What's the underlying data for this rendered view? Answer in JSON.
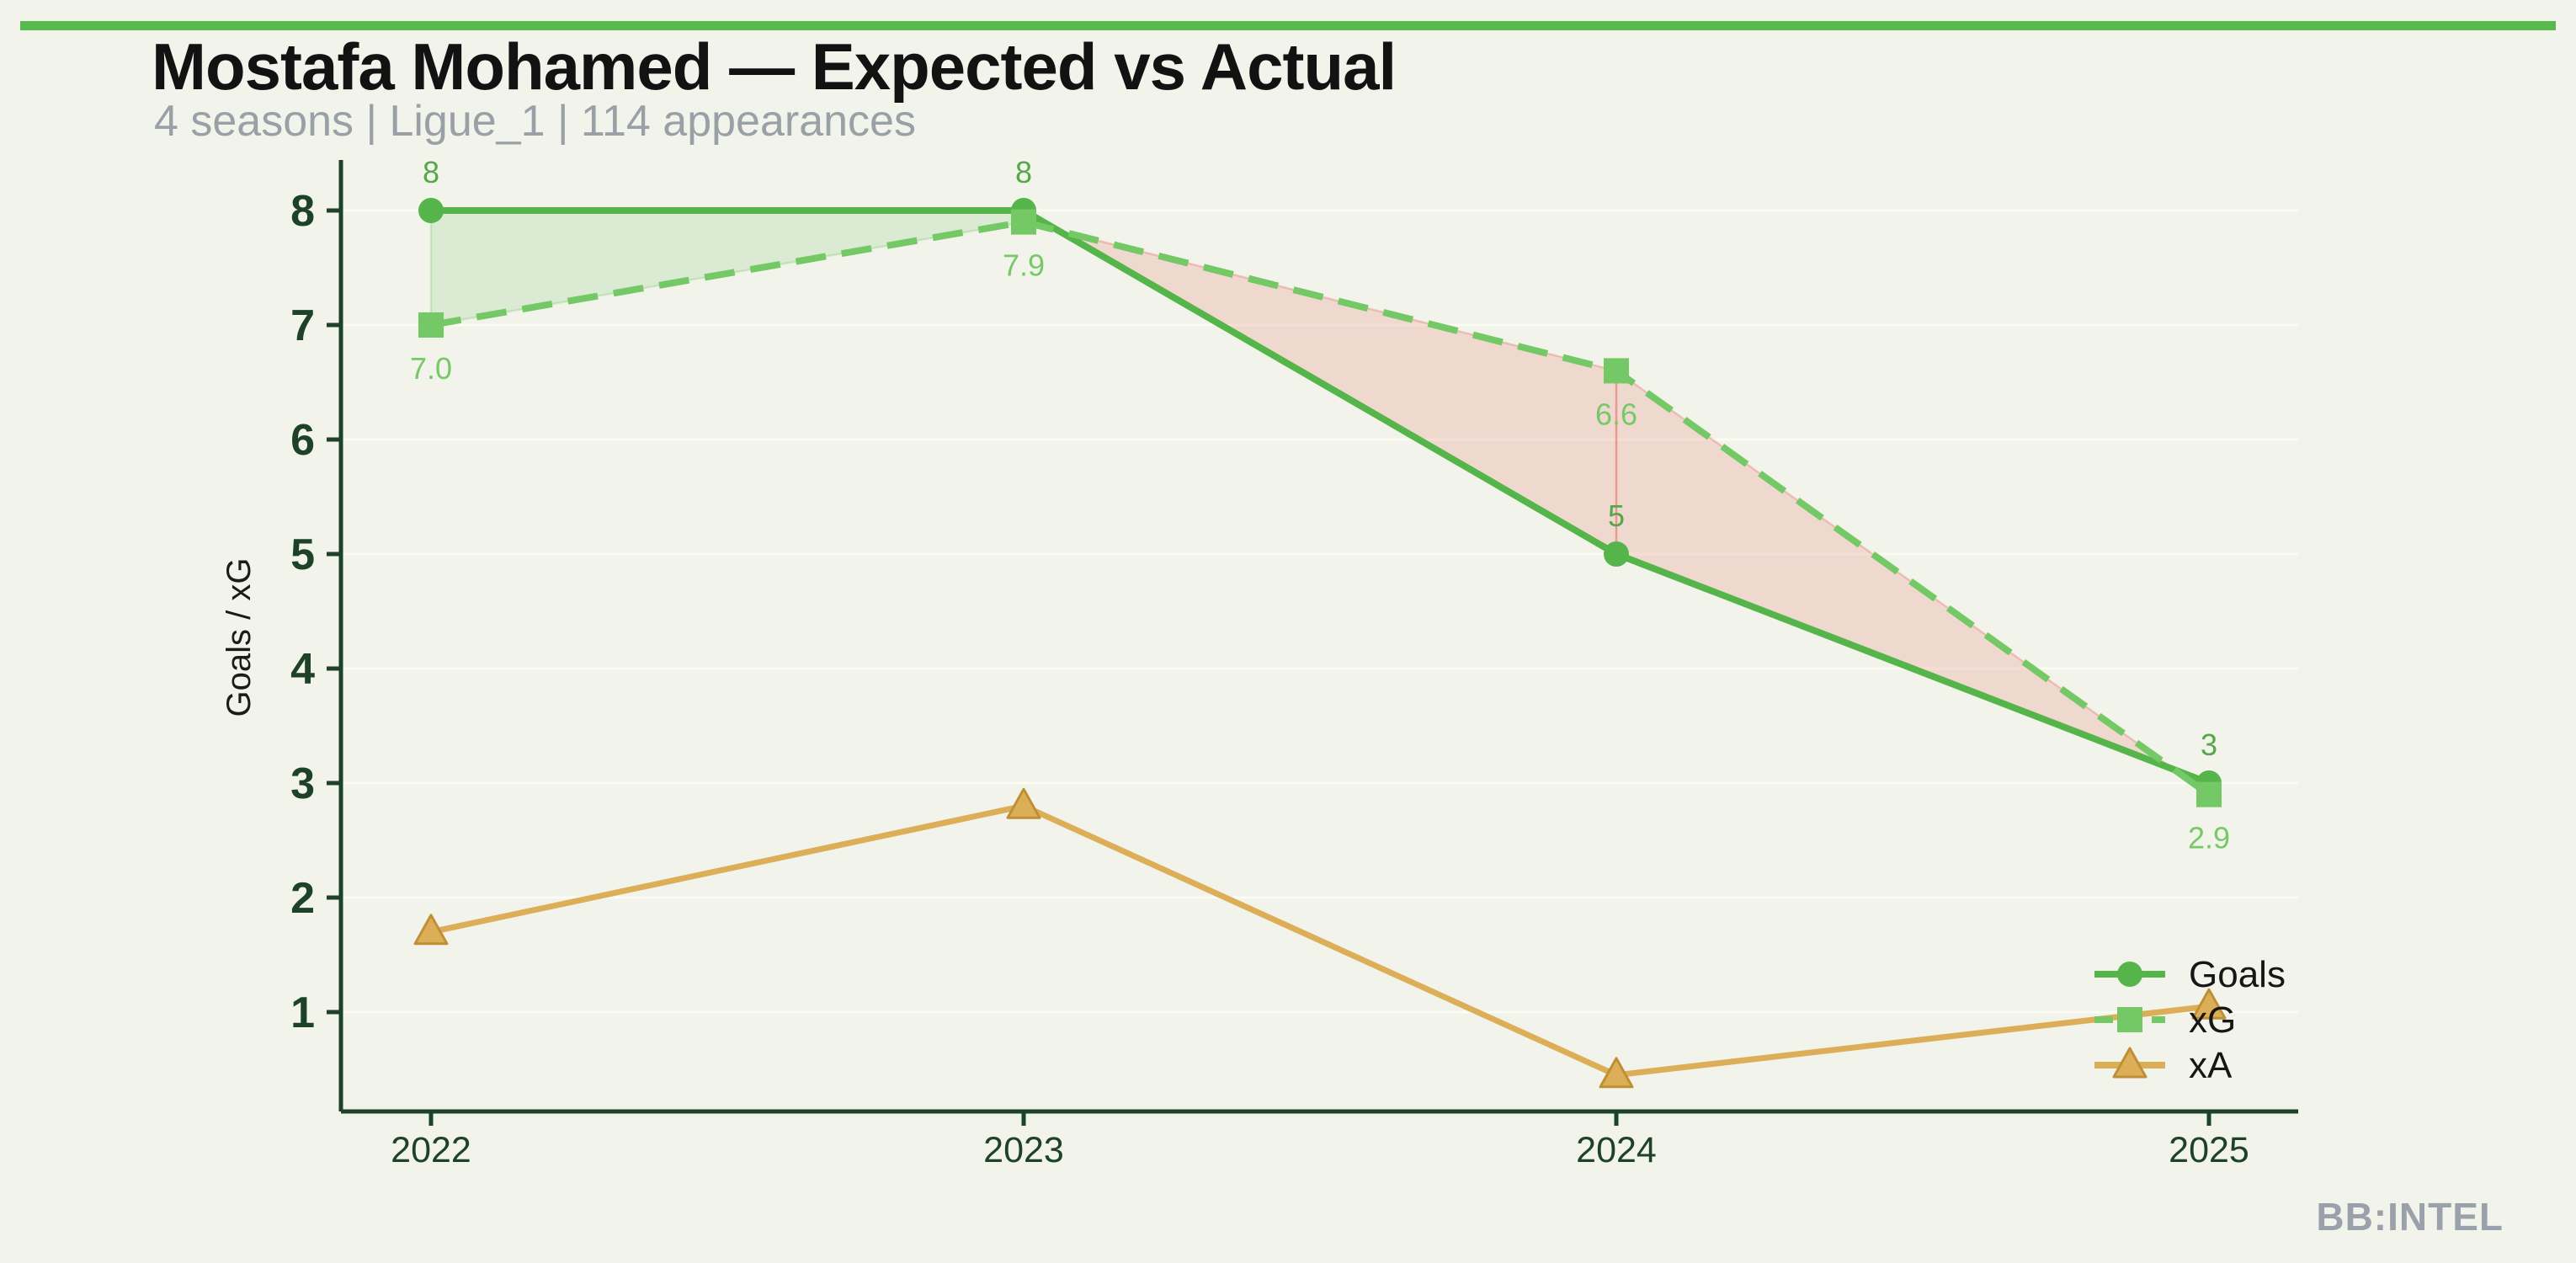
{
  "page": {
    "title": "Mostafa Mohamed — Expected vs Actual",
    "subtitle": "4 seasons | Ligue_1 | 114 appearances",
    "watermark": "BB:INTEL",
    "accent_color": "#58ba4c",
    "background_color": "#f2f4eb"
  },
  "chart_data": {
    "type": "line",
    "title": "Mostafa Mohamed — Expected vs Actual",
    "subtitle": "4 seasons | Ligue_1 | 114 appearances",
    "x": [
      "2022",
      "2023",
      "2024",
      "2025"
    ],
    "xlabel": "",
    "ylabel": "Goals / xG",
    "ylim": [
      0,
      8.6
    ],
    "yticks": [
      1,
      2,
      3,
      4,
      5,
      6,
      7,
      8
    ],
    "grid": true,
    "legend_position": "lower right",
    "axis_color": "#1d4228",
    "tick_label_color": "#1d4228",
    "grid_color": "#fafbf3",
    "ylabel_color": "#1b1b1b",
    "legend_text_color": "#161616",
    "series": [
      {
        "name": "Goals",
        "values": [
          8,
          8,
          5,
          3
        ],
        "color": "#56b54a",
        "marker": "circle",
        "style": "solid",
        "point_labels": [
          "8",
          "8",
          "5",
          "3"
        ],
        "label_color": "#55a74a",
        "label_side": "above"
      },
      {
        "name": "xG",
        "values": [
          7.0,
          7.9,
          6.6,
          2.9
        ],
        "color": "#74c966",
        "marker": "square",
        "style": "dashed",
        "point_labels": [
          "7.0",
          "7.9",
          "6.6",
          "2.9"
        ],
        "label_color": "#77c967",
        "label_side": "below"
      },
      {
        "name": "xA",
        "values": [
          1.7,
          2.8,
          0.45,
          1.05
        ],
        "color": "#ddae58",
        "marker": "triangle",
        "marker_edge": "#c08f35",
        "style": "solid",
        "point_labels": null,
        "label_color": null,
        "label_side": null
      }
    ],
    "bands": {
      "between": [
        "Goals",
        "xG"
      ],
      "goals_above_fill": "rgba(100,190,85,0.16)",
      "goals_above_edge": "rgba(100,190,85,0.25)",
      "xg_above_fill": "rgba(225,95,85,0.18)",
      "xg_above_edge": "rgba(225,95,85,0.30)"
    }
  }
}
